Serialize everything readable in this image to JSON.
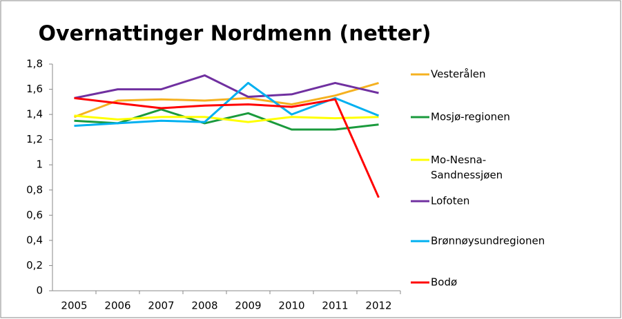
{
  "chart_data": {
    "type": "line",
    "title": "Overnattinger Nordmenn (netter)",
    "categories": [
      "2005",
      "2006",
      "2007",
      "2008",
      "2009",
      "2010",
      "2011",
      "2012"
    ],
    "series": [
      {
        "name": "Vesterålen",
        "color": "#f5b120",
        "values": [
          1.38,
          1.51,
          1.52,
          1.51,
          1.53,
          1.48,
          1.55,
          1.65
        ]
      },
      {
        "name": "Mosjø-regionen",
        "color": "#1a9a3c",
        "values": [
          1.35,
          1.33,
          1.44,
          1.33,
          1.41,
          1.28,
          1.28,
          1.32
        ]
      },
      {
        "name": "Mo-Nesna-Sandnessjøen",
        "color": "#ffff00",
        "values": [
          1.39,
          1.36,
          1.38,
          1.38,
          1.34,
          1.38,
          1.37,
          1.38
        ]
      },
      {
        "name": "Lofoten",
        "color": "#7030a0",
        "values": [
          1.53,
          1.6,
          1.6,
          1.71,
          1.54,
          1.56,
          1.65,
          1.57
        ]
      },
      {
        "name": "Brønnøysundregionen",
        "color": "#00b0f0",
        "values": [
          1.31,
          1.33,
          1.35,
          1.34,
          1.65,
          1.4,
          1.53,
          1.39
        ]
      },
      {
        "name": "Bodø",
        "color": "#ff0000",
        "values": [
          1.53,
          1.49,
          1.45,
          1.47,
          1.48,
          1.46,
          1.52,
          0.74
        ]
      }
    ],
    "ylim": [
      0,
      1.8
    ],
    "yticks": [
      0,
      {
        "value": 0.2,
        "label": "0,2"
      },
      {
        "value": 0.4,
        "label": "0,4"
      },
      {
        "value": 0.6,
        "label": "0,6"
      },
      {
        "value": 0.8,
        "label": "0,8"
      },
      1,
      {
        "value": 1.2,
        "label": "1,2"
      },
      {
        "value": 1.4,
        "label": "1,4"
      },
      {
        "value": 1.6,
        "label": "1,6"
      },
      {
        "value": 1.8,
        "label": "1,8"
      }
    ],
    "grid": false,
    "legend": "right"
  }
}
